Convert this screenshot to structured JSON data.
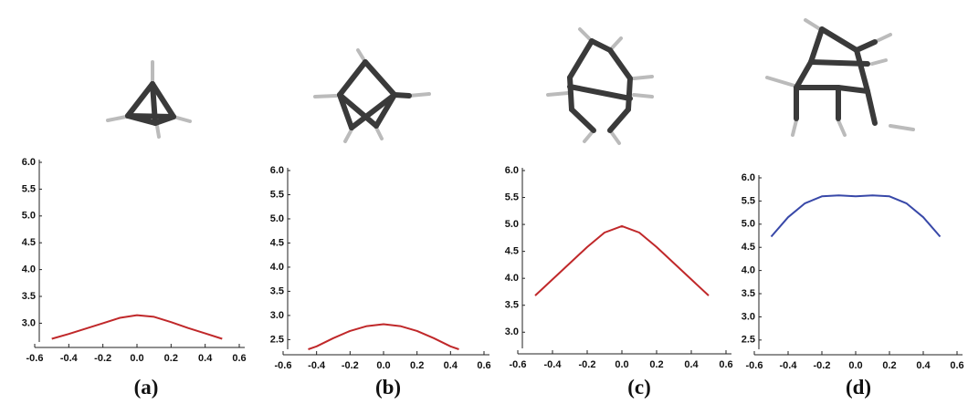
{
  "chart_data": [
    {
      "type": "line",
      "caption": "(a)",
      "color": "#c0282a",
      "x": [
        -0.5,
        -0.4,
        -0.3,
        -0.2,
        -0.1,
        0,
        0.1,
        0.2,
        0.3,
        0.4,
        0.5
      ],
      "values": [
        2.71,
        2.8,
        2.9,
        3.0,
        3.1,
        3.15,
        3.12,
        3.02,
        2.91,
        2.81,
        2.71
      ],
      "xlim": [
        -0.6,
        0.6
      ],
      "ylim": [
        2.65,
        6.0
      ],
      "xticks": [
        -0.6,
        -0.4,
        -0.2,
        {
          "value": 0,
          "label": "0.0"
        },
        0.2,
        0.4,
        0.6
      ],
      "yticks": [
        {
          "value": 3,
          "label": "3.0"
        },
        3.5,
        {
          "value": 4,
          "label": "4.0"
        },
        4.5,
        {
          "value": 5,
          "label": "5.0"
        },
        5.5,
        {
          "value": 6,
          "label": "6.0"
        }
      ]
    },
    {
      "type": "line",
      "caption": "(b)",
      "color": "#c0282a",
      "x": [
        -0.45,
        -0.4,
        -0.3,
        -0.2,
        -0.1,
        0,
        0.1,
        0.2,
        0.3,
        0.4,
        0.45
      ],
      "values": [
        2.3,
        2.36,
        2.53,
        2.68,
        2.78,
        2.82,
        2.78,
        2.68,
        2.53,
        2.36,
        2.3
      ],
      "xlim": [
        -0.6,
        0.6
      ],
      "ylim": [
        2.3,
        6.0
      ],
      "xticks": [
        -0.6,
        -0.4,
        -0.2,
        {
          "value": 0,
          "label": "0.0"
        },
        0.2,
        0.4,
        0.6
      ],
      "yticks": [
        2.5,
        {
          "value": 3,
          "label": "3.0"
        },
        3.5,
        {
          "value": 4,
          "label": "4.0"
        },
        4.5,
        {
          "value": 5,
          "label": "5.0"
        },
        5.5,
        {
          "value": 6,
          "label": "6.0"
        }
      ]
    },
    {
      "type": "line",
      "caption": "(c)",
      "color": "#c0282a",
      "x": [
        -0.5,
        -0.4,
        -0.3,
        -0.2,
        -0.1,
        0,
        0.1,
        0.2,
        0.3,
        0.4,
        0.5
      ],
      "values": [
        3.68,
        3.98,
        4.28,
        4.58,
        4.85,
        4.97,
        4.85,
        4.58,
        4.28,
        3.98,
        3.68
      ],
      "xlim": [
        -0.6,
        0.6
      ],
      "ylim": [
        2.7,
        6.0
      ],
      "xticks": [
        -0.6,
        -0.4,
        -0.2,
        {
          "value": 0,
          "label": "0.0"
        },
        0.2,
        0.4,
        0.6
      ],
      "yticks": [
        {
          "value": 3,
          "label": "3.0"
        },
        3.5,
        {
          "value": 4,
          "label": "4.0"
        },
        4.5,
        {
          "value": 5,
          "label": "5.0"
        },
        5.5,
        {
          "value": 6,
          "label": "6.0"
        }
      ]
    },
    {
      "type": "line",
      "caption": "(d)",
      "color": "#3848a8",
      "x": [
        -0.5,
        -0.4,
        -0.3,
        -0.2,
        -0.1,
        0,
        0.1,
        0.2,
        0.3,
        0.4,
        0.5
      ],
      "values": [
        4.73,
        5.15,
        5.45,
        5.6,
        5.62,
        5.6,
        5.62,
        5.6,
        5.45,
        5.15,
        4.73
      ],
      "xlim": [
        -0.6,
        0.6
      ],
      "ylim": [
        2.3,
        6.0
      ],
      "xticks": [
        -0.6,
        -0.4,
        -0.2,
        {
          "value": 0,
          "label": "0.0"
        },
        0.2,
        0.4,
        0.6
      ],
      "yticks": [
        2.5,
        {
          "value": 3,
          "label": "3.0"
        },
        3.5,
        {
          "value": 4,
          "label": "4.0"
        },
        4.5,
        {
          "value": 5,
          "label": "5.0"
        },
        5.5,
        {
          "value": 6,
          "label": "6.0"
        }
      ]
    }
  ]
}
